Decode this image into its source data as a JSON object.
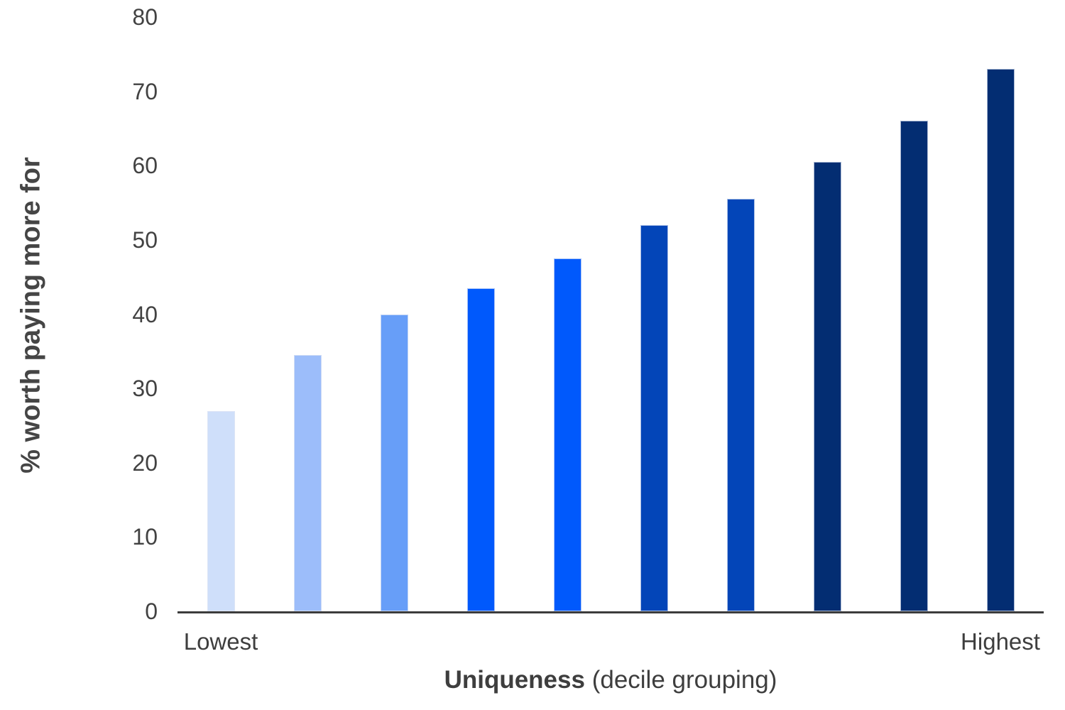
{
  "chart_data": {
    "type": "bar",
    "title": "",
    "ylabel": "% worth paying more for",
    "xlabel": "Uniqueness (decile grouping)",
    "xlabel_bold": "Uniqueness",
    "xlabel_regular": " (decile grouping)",
    "categories": [
      "Lowest",
      "",
      "",
      "",
      "",
      "",
      "",
      "",
      "",
      "Highest"
    ],
    "values": [
      27,
      34.5,
      40,
      43.5,
      47.5,
      52,
      55.5,
      60.5,
      66,
      73
    ],
    "bar_colors": [
      "#cfdffa",
      "#9cbdfa",
      "#679ef8",
      "#0059fc",
      "#0059fc",
      "#0345b8",
      "#0345b8",
      "#032d72",
      "#032d72",
      "#032d72"
    ],
    "yticks": [
      0,
      10,
      20,
      30,
      40,
      50,
      60,
      70,
      80
    ],
    "ylim": [
      0,
      80
    ],
    "grid": false,
    "legend": "none",
    "axis_color": "#3c3c3c",
    "text_color": "#3e3e3e"
  }
}
